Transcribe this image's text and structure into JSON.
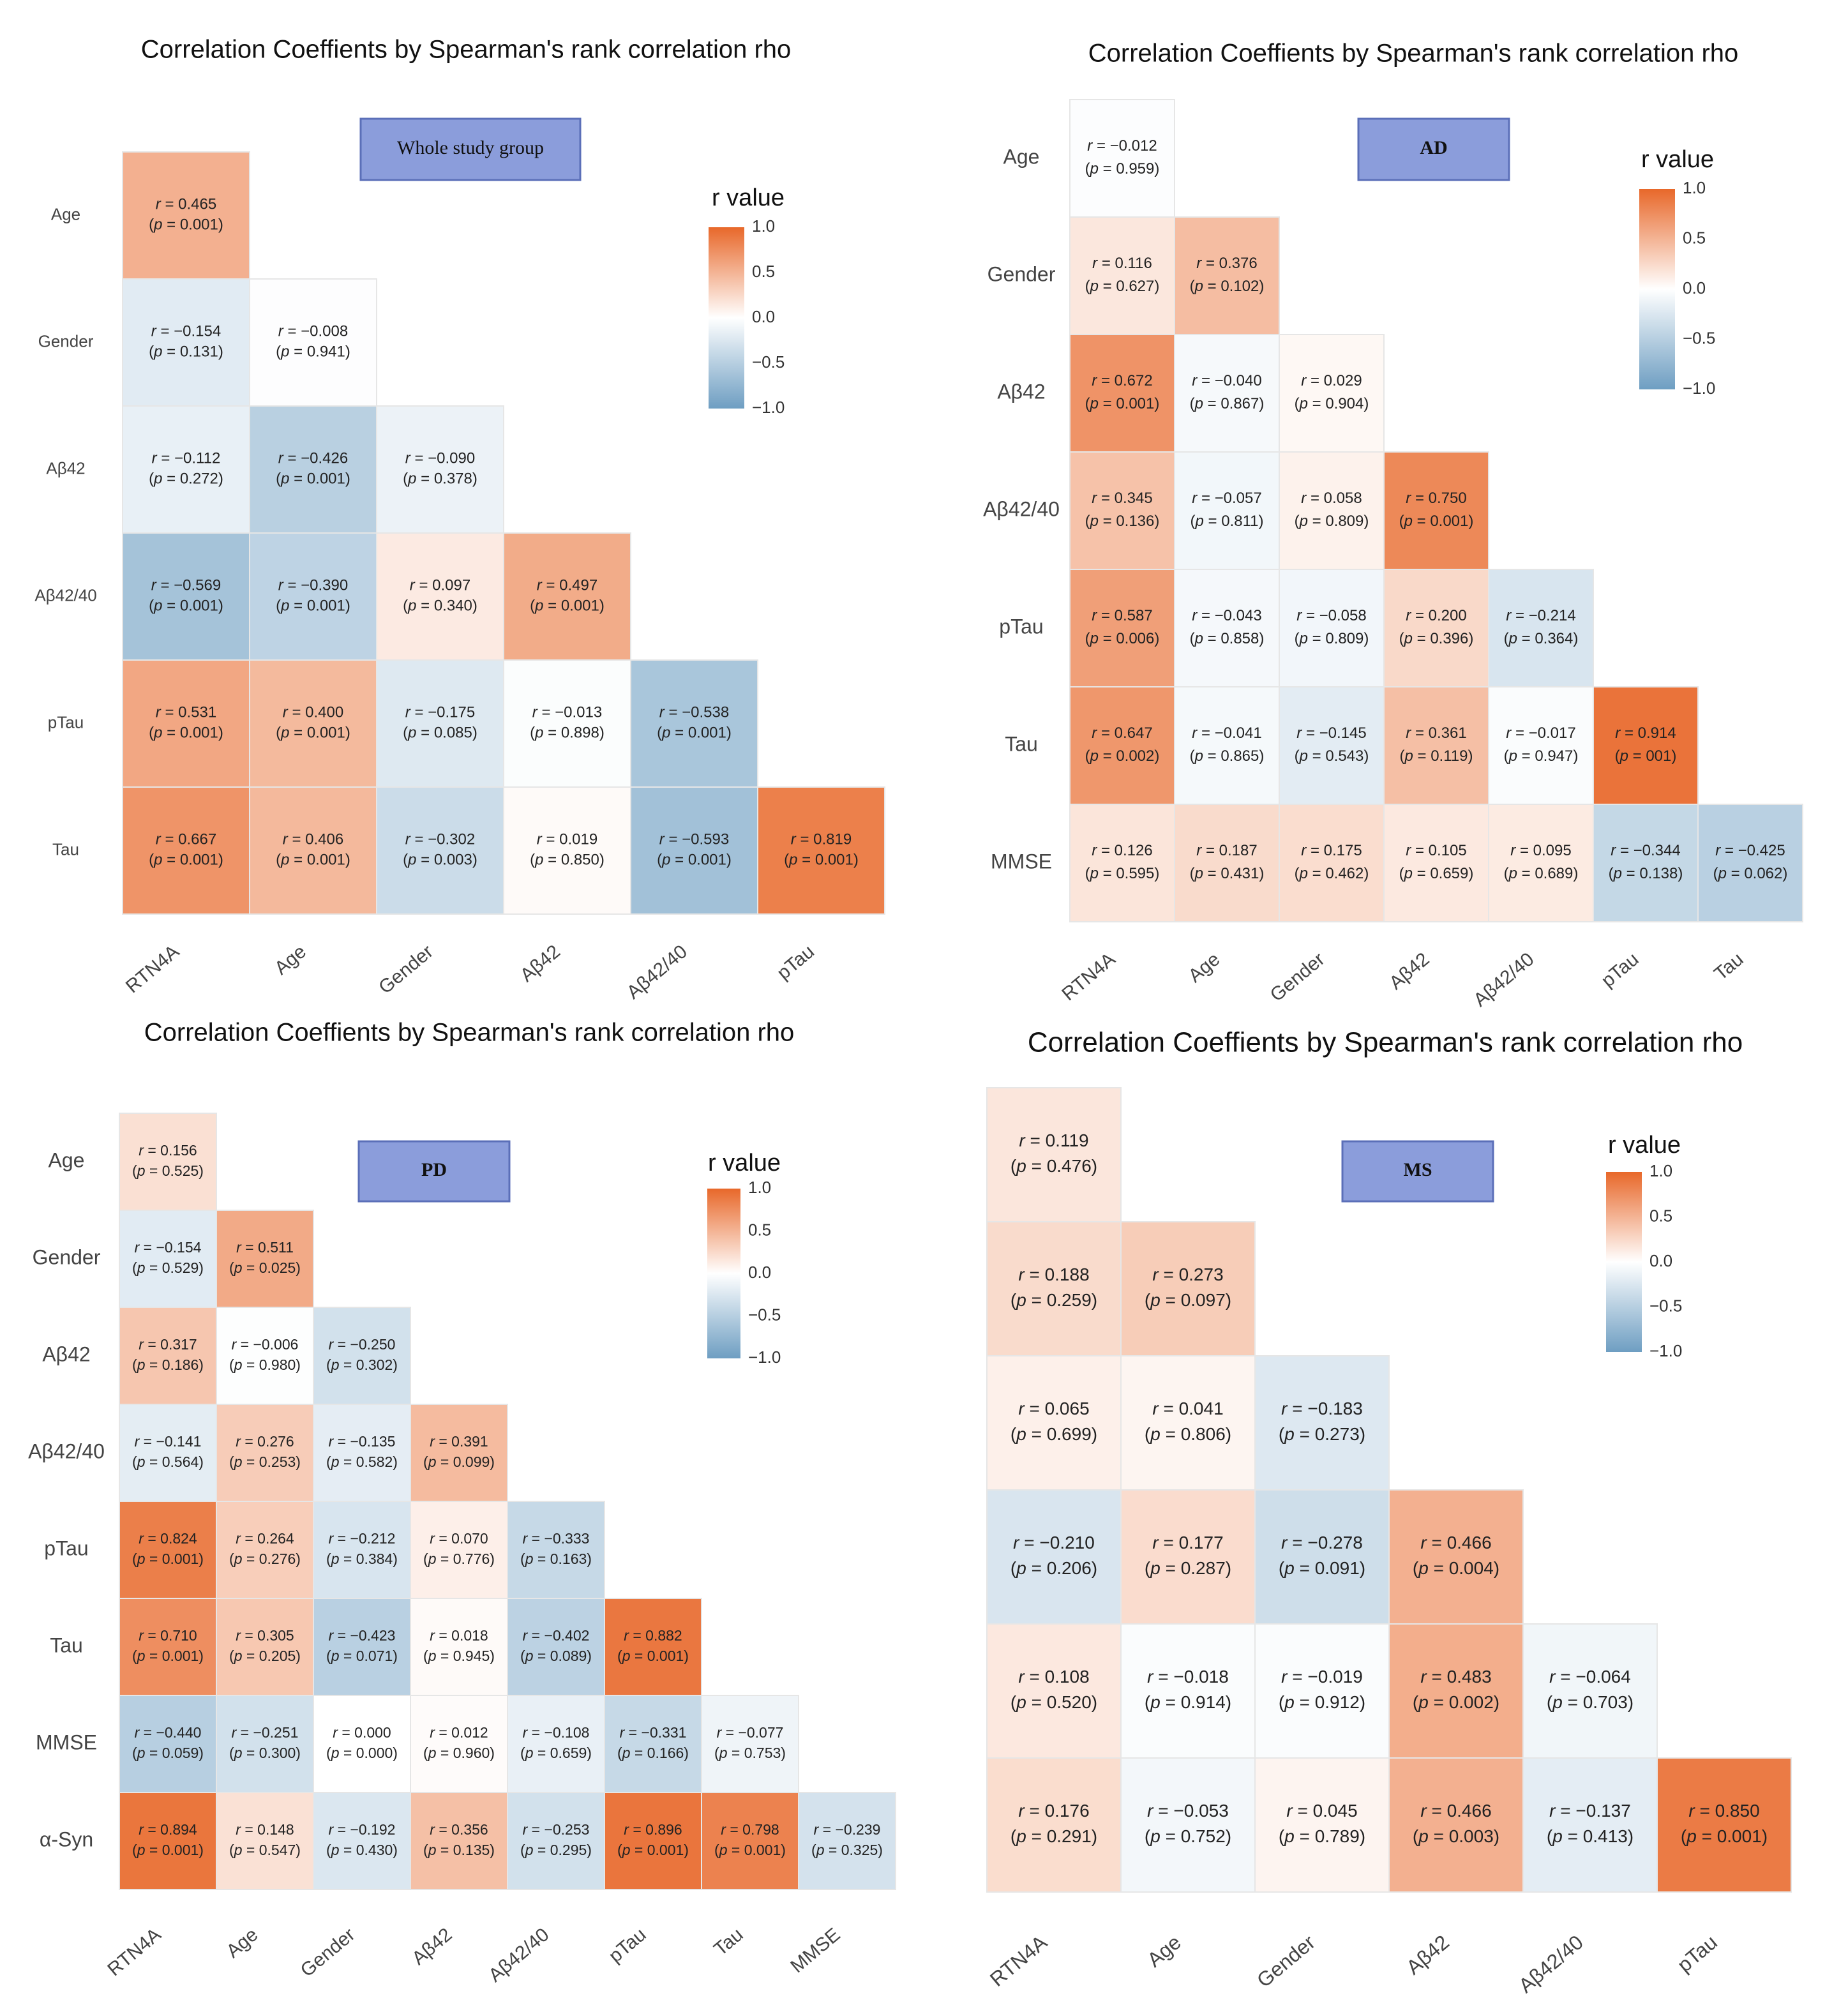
{
  "chart_data": [
    {
      "type": "heatmap",
      "title": "Correlation Coeffients by Spearman's rank correlation rho",
      "group_label": "Whole study group",
      "legend": {
        "title": "r value",
        "ticks": [
          "1.0",
          "0.5",
          "0.0",
          "−0.5",
          "−1.0"
        ],
        "position": "top-right"
      },
      "rows": [
        "Age",
        "Gender",
        "Aβ42",
        "Aβ42/40",
        "pTau",
        "Tau"
      ],
      "columns": [
        "RTN4A",
        "Age",
        "Gender",
        "Aβ42",
        "Aβ42/40",
        "pTau"
      ],
      "cells": [
        [
          {
            "r": 0.465,
            "r_text": "0.465",
            "p_text": "0.001"
          }
        ],
        [
          {
            "r": -0.154,
            "r_text": "−0.154",
            "p_text": "0.131"
          },
          {
            "r": -0.008,
            "r_text": "−0.008",
            "p_text": "0.941"
          }
        ],
        [
          {
            "r": -0.112,
            "r_text": "−0.112",
            "p_text": "0.272"
          },
          {
            "r": -0.426,
            "r_text": "−0.426",
            "p_text": "0.001"
          },
          {
            "r": -0.09,
            "r_text": "−0.090",
            "p_text": "0.378"
          }
        ],
        [
          {
            "r": -0.569,
            "r_text": "−0.569",
            "p_text": "0.001"
          },
          {
            "r": -0.39,
            "r_text": "−0.390",
            "p_text": "0.001"
          },
          {
            "r": 0.097,
            "r_text": "0.097",
            "p_text": "0.340"
          },
          {
            "r": 0.497,
            "r_text": "0.497",
            "p_text": "0.001"
          }
        ],
        [
          {
            "r": 0.531,
            "r_text": "0.531",
            "p_text": "0.001"
          },
          {
            "r": 0.4,
            "r_text": "0.400",
            "p_text": "0.001"
          },
          {
            "r": -0.175,
            "r_text": "−0.175",
            "p_text": "0.085"
          },
          {
            "r": -0.013,
            "r_text": "−0.013",
            "p_text": "0.898"
          },
          {
            "r": -0.538,
            "r_text": "−0.538",
            "p_text": "0.001"
          }
        ],
        [
          {
            "r": 0.667,
            "r_text": "0.667",
            "p_text": "0.001"
          },
          {
            "r": 0.406,
            "r_text": "0.406",
            "p_text": "0.001"
          },
          {
            "r": -0.302,
            "r_text": "−0.302",
            "p_text": "0.003"
          },
          {
            "r": 0.019,
            "r_text": "0.019",
            "p_text": "0.850"
          },
          {
            "r": -0.593,
            "r_text": "−0.593",
            "p_text": "0.001"
          },
          {
            "r": 0.819,
            "r_text": "0.819",
            "p_text": "0.001"
          }
        ]
      ]
    },
    {
      "type": "heatmap",
      "title": "Correlation Coeffients by Spearman's rank correlation rho",
      "group_label": "AD",
      "legend": {
        "title": "r value",
        "ticks": [
          "1.0",
          "0.5",
          "0.0",
          "−0.5",
          "−1.0"
        ],
        "position": "top-right"
      },
      "rows": [
        "Age",
        "Gender",
        "Aβ42",
        "Aβ42/40",
        "pTau",
        "Tau",
        "MMSE"
      ],
      "columns": [
        "RTN4A",
        "Age",
        "Gender",
        "Aβ42",
        "Aβ42/40",
        "pTau",
        "Tau"
      ],
      "cells": [
        [
          {
            "r": -0.012,
            "r_text": "−0.012",
            "p_text": "0.959"
          }
        ],
        [
          {
            "r": 0.116,
            "r_text": "0.116",
            "p_text": "0.627"
          },
          {
            "r": 0.376,
            "r_text": "0.376",
            "p_text": "0.102"
          }
        ],
        [
          {
            "r": 0.672,
            "r_text": "0.672",
            "p_text": "0.001"
          },
          {
            "r": -0.04,
            "r_text": "−0.040",
            "p_text": "0.867"
          },
          {
            "r": 0.029,
            "r_text": "0.029",
            "p_text": "0.904"
          }
        ],
        [
          {
            "r": 0.345,
            "r_text": "0.345",
            "p_text": "0.136"
          },
          {
            "r": -0.057,
            "r_text": "−0.057",
            "p_text": "0.811"
          },
          {
            "r": 0.058,
            "r_text": "0.058",
            "p_text": "0.809"
          },
          {
            "r": 0.75,
            "r_text": "0.750",
            "p_text": "0.001"
          }
        ],
        [
          {
            "r": 0.587,
            "r_text": "0.587",
            "p_text": "0.006"
          },
          {
            "r": -0.043,
            "r_text": "−0.043",
            "p_text": "0.858"
          },
          {
            "r": -0.058,
            "r_text": "−0.058",
            "p_text": "0.809"
          },
          {
            "r": 0.2,
            "r_text": "0.200",
            "p_text": "0.396"
          },
          {
            "r": -0.214,
            "r_text": "−0.214",
            "p_text": "0.364"
          }
        ],
        [
          {
            "r": 0.647,
            "r_text": "0.647",
            "p_text": "0.002"
          },
          {
            "r": -0.041,
            "r_text": "−0.041",
            "p_text": "0.865"
          },
          {
            "r": -0.145,
            "r_text": "−0.145",
            "p_text": "0.543"
          },
          {
            "r": 0.361,
            "r_text": "0.361",
            "p_text": "0.119"
          },
          {
            "r": -0.017,
            "r_text": "−0.017",
            "p_text": "0.947"
          },
          {
            "r": 0.914,
            "r_text": "0.914",
            "p_text": "001"
          }
        ],
        [
          {
            "r": 0.126,
            "r_text": "0.126",
            "p_text": "0.595"
          },
          {
            "r": 0.187,
            "r_text": "0.187",
            "p_text": "0.431"
          },
          {
            "r": 0.175,
            "r_text": "0.175",
            "p_text": "0.462"
          },
          {
            "r": 0.105,
            "r_text": "0.105",
            "p_text": "0.659"
          },
          {
            "r": 0.095,
            "r_text": "0.095",
            "p_text": "0.689"
          },
          {
            "r": -0.344,
            "r_text": "−0.344",
            "p_text": "0.138"
          },
          {
            "r": -0.425,
            "r_text": "−0.425",
            "p_text": "0.062"
          }
        ]
      ]
    },
    {
      "type": "heatmap",
      "title": "Correlation Coeffients by Spearman's rank correlation rho",
      "group_label": "PD",
      "legend": {
        "title": "r value",
        "ticks": [
          "1.0",
          "0.5",
          "0.0",
          "−0.5",
          "−1.0"
        ],
        "position": "top-right"
      },
      "rows": [
        "Age",
        "Gender",
        "Aβ42",
        "Aβ42/40",
        "pTau",
        "Tau",
        "MMSE",
        "α-Syn"
      ],
      "columns": [
        "RTN4A",
        "Age",
        "Gender",
        "Aβ42",
        "Aβ42/40",
        "pTau",
        "Tau",
        "MMSE"
      ],
      "cells": [
        [
          {
            "r": 0.156,
            "r_text": "0.156",
            "p_text": "0.525"
          }
        ],
        [
          {
            "r": -0.154,
            "r_text": "−0.154",
            "p_text": "0.529"
          },
          {
            "r": 0.511,
            "r_text": "0.511",
            "p_text": "0.025"
          }
        ],
        [
          {
            "r": 0.317,
            "r_text": "0.317",
            "p_text": "0.186"
          },
          {
            "r": -0.006,
            "r_text": "−0.006",
            "p_text": "0.980"
          },
          {
            "r": -0.25,
            "r_text": "−0.250",
            "p_text": "0.302"
          }
        ],
        [
          {
            "r": -0.141,
            "r_text": "−0.141",
            "p_text": "0.564"
          },
          {
            "r": 0.276,
            "r_text": "0.276",
            "p_text": "0.253"
          },
          {
            "r": -0.135,
            "r_text": "−0.135",
            "p_text": "0.582"
          },
          {
            "r": 0.391,
            "r_text": "0.391",
            "p_text": "0.099"
          }
        ],
        [
          {
            "r": 0.824,
            "r_text": "0.824",
            "p_text": "0.001"
          },
          {
            "r": 0.264,
            "r_text": "0.264",
            "p_text": "0.276"
          },
          {
            "r": -0.212,
            "r_text": "−0.212",
            "p_text": "0.384"
          },
          {
            "r": 0.07,
            "r_text": "0.070",
            "p_text": "0.776"
          },
          {
            "r": -0.333,
            "r_text": "−0.333",
            "p_text": "0.163"
          }
        ],
        [
          {
            "r": 0.71,
            "r_text": "0.710",
            "p_text": "0.001"
          },
          {
            "r": 0.305,
            "r_text": "0.305",
            "p_text": "0.205"
          },
          {
            "r": -0.423,
            "r_text": "−0.423",
            "p_text": "0.071"
          },
          {
            "r": 0.018,
            "r_text": "0.018",
            "p_text": "0.945"
          },
          {
            "r": -0.402,
            "r_text": "−0.402",
            "p_text": "0.089"
          },
          {
            "r": 0.882,
            "r_text": "0.882",
            "p_text": "0.001"
          }
        ],
        [
          {
            "r": -0.44,
            "r_text": "−0.440",
            "p_text": "0.059"
          },
          {
            "r": -0.251,
            "r_text": "−0.251",
            "p_text": "0.300"
          },
          {
            "r": 0.0,
            "r_text": "0.000",
            "p_text": "0.000"
          },
          {
            "r": 0.012,
            "r_text": "0.012",
            "p_text": "0.960"
          },
          {
            "r": -0.108,
            "r_text": "−0.108",
            "p_text": "0.659"
          },
          {
            "r": -0.331,
            "r_text": "−0.331",
            "p_text": "0.166"
          },
          {
            "r": -0.077,
            "r_text": "−0.077",
            "p_text": "0.753"
          }
        ],
        [
          {
            "r": 0.894,
            "r_text": "0.894",
            "p_text": "0.001"
          },
          {
            "r": 0.148,
            "r_text": "0.148",
            "p_text": "0.547"
          },
          {
            "r": -0.192,
            "r_text": "−0.192",
            "p_text": "0.430"
          },
          {
            "r": 0.356,
            "r_text": "0.356",
            "p_text": "0.135"
          },
          {
            "r": -0.253,
            "r_text": "−0.253",
            "p_text": "0.295"
          },
          {
            "r": 0.896,
            "r_text": "0.896",
            "p_text": "0.001"
          },
          {
            "r": 0.798,
            "r_text": "0.798",
            "p_text": "0.001"
          },
          {
            "r": -0.239,
            "r_text": "−0.239",
            "p_text": "0.325"
          }
        ]
      ]
    },
    {
      "type": "heatmap",
      "title": "Correlation Coeffients by Spearman's rank correlation rho",
      "group_label": "MS",
      "legend": {
        "title": "r value",
        "ticks": [
          "1.0",
          "0.5",
          "0.0",
          "−0.5",
          "−1.0"
        ],
        "position": "top-right"
      },
      "rows": [],
      "columns": [
        "RTN4A",
        "Age",
        "Gender",
        "Aβ42",
        "Aβ42/40",
        "pTau"
      ],
      "cells": [
        [
          {
            "r": 0.119,
            "r_text": "0.119",
            "p_text": "0.476"
          }
        ],
        [
          {
            "r": 0.188,
            "r_text": "0.188",
            "p_text": "0.259"
          },
          {
            "r": 0.273,
            "r_text": "0.273",
            "p_text": "0.097"
          }
        ],
        [
          {
            "r": 0.065,
            "r_text": "0.065",
            "p_text": "0.699"
          },
          {
            "r": 0.041,
            "r_text": "0.041",
            "p_text": "0.806"
          },
          {
            "r": -0.183,
            "r_text": "−0.183",
            "p_text": "0.273"
          }
        ],
        [
          {
            "r": -0.21,
            "r_text": "−0.210",
            "p_text": "0.206"
          },
          {
            "r": 0.177,
            "r_text": "0.177",
            "p_text": "0.287"
          },
          {
            "r": -0.278,
            "r_text": "−0.278",
            "p_text": "0.091"
          },
          {
            "r": 0.466,
            "r_text": "0.466",
            "p_text": "0.004"
          }
        ],
        [
          {
            "r": 0.108,
            "r_text": "0.108",
            "p_text": "0.520"
          },
          {
            "r": -0.018,
            "r_text": "−0.018",
            "p_text": "0.914"
          },
          {
            "r": -0.019,
            "r_text": "−0.019",
            "p_text": "0.912"
          },
          {
            "r": 0.483,
            "r_text": "0.483",
            "p_text": "0.002"
          },
          {
            "r": -0.064,
            "r_text": "−0.064",
            "p_text": "0.703"
          }
        ],
        [
          {
            "r": 0.176,
            "r_text": "0.176",
            "p_text": "0.291"
          },
          {
            "r": -0.053,
            "r_text": "−0.053",
            "p_text": "0.752"
          },
          {
            "r": 0.045,
            "r_text": "0.045",
            "p_text": "0.789"
          },
          {
            "r": 0.466,
            "r_text": "0.466",
            "p_text": "0.003"
          },
          {
            "r": -0.137,
            "r_text": "−0.137",
            "p_text": "0.413"
          },
          {
            "r": 0.85,
            "r_text": "0.850",
            "p_text": "0.001"
          }
        ]
      ]
    }
  ],
  "colors": {
    "positive": "#e8682a",
    "neutral": "#ffffff",
    "negative": "#6e9ec2",
    "group_box_fill": "#8b9ddb",
    "group_box_stroke": "#5b6fb8"
  }
}
